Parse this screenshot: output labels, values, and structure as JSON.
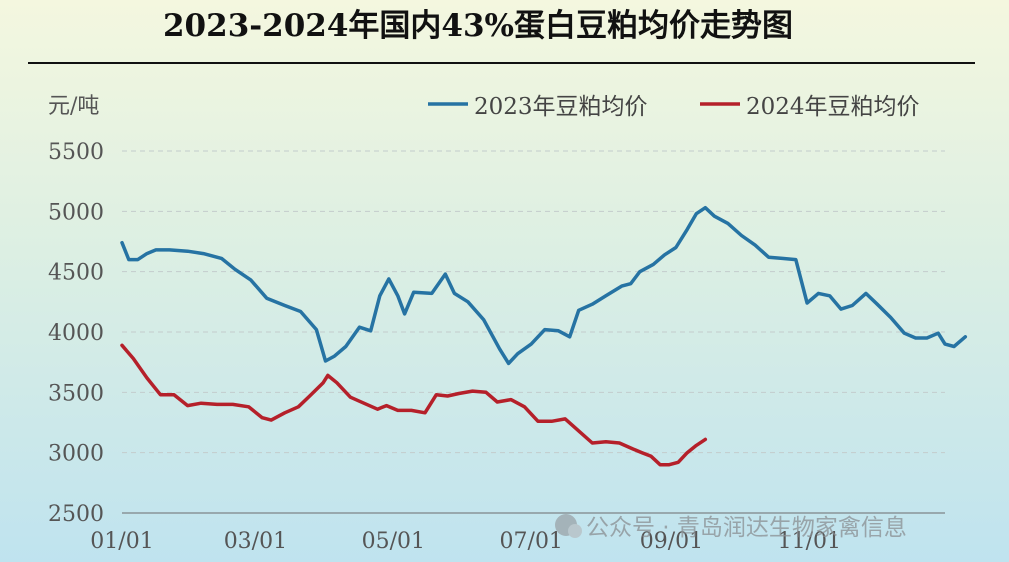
{
  "chart_data": {
    "type": "line",
    "title": "2023-2024年国内43%蛋白豆粕均价走势图",
    "ylabel": "元/吨",
    "xlabel": "",
    "ylim": [
      2500,
      5500
    ],
    "yticks": [
      2500,
      3000,
      3500,
      4000,
      4500,
      5000,
      5500
    ],
    "xlim": [
      "01/01",
      "12/31"
    ],
    "xticks": [
      "01/01",
      "03/01",
      "05/01",
      "07/01",
      "09/01",
      "11/01"
    ],
    "grid": "horizontal-dashed",
    "legend_position": "top-right",
    "series": [
      {
        "name": "2023年豆粕均价",
        "color": "#2673a3",
        "points": [
          [
            "01/01",
            4740
          ],
          [
            "01/04",
            4600
          ],
          [
            "01/08",
            4600
          ],
          [
            "01/12",
            4650
          ],
          [
            "01/16",
            4680
          ],
          [
            "01/22",
            4680
          ],
          [
            "01/30",
            4670
          ],
          [
            "02/06",
            4650
          ],
          [
            "02/14",
            4610
          ],
          [
            "02/20",
            4520
          ],
          [
            "02/27",
            4430
          ],
          [
            "03/06",
            4280
          ],
          [
            "03/14",
            4220
          ],
          [
            "03/21",
            4170
          ],
          [
            "03/28",
            4020
          ],
          [
            "04/01",
            3760
          ],
          [
            "04/05",
            3800
          ],
          [
            "04/10",
            3880
          ],
          [
            "04/16",
            4040
          ],
          [
            "04/21",
            4010
          ],
          [
            "04/25",
            4300
          ],
          [
            "04/29",
            4440
          ],
          [
            "05/03",
            4300
          ],
          [
            "05/06",
            4150
          ],
          [
            "05/10",
            4330
          ],
          [
            "05/18",
            4320
          ],
          [
            "05/24",
            4480
          ],
          [
            "05/28",
            4320
          ],
          [
            "06/03",
            4250
          ],
          [
            "06/10",
            4100
          ],
          [
            "06/17",
            3860
          ],
          [
            "06/21",
            3740
          ],
          [
            "06/25",
            3820
          ],
          [
            "07/01",
            3900
          ],
          [
            "07/07",
            4020
          ],
          [
            "07/13",
            4010
          ],
          [
            "07/18",
            3960
          ],
          [
            "07/22",
            4180
          ],
          [
            "07/28",
            4230
          ],
          [
            "08/03",
            4300
          ],
          [
            "08/10",
            4380
          ],
          [
            "08/14",
            4400
          ],
          [
            "08/18",
            4500
          ],
          [
            "08/24",
            4560
          ],
          [
            "08/29",
            4640
          ],
          [
            "09/03",
            4700
          ],
          [
            "09/08",
            4850
          ],
          [
            "09/12",
            4980
          ],
          [
            "09/16",
            5030
          ],
          [
            "09/20",
            4960
          ],
          [
            "09/26",
            4900
          ],
          [
            "10/02",
            4800
          ],
          [
            "10/08",
            4720
          ],
          [
            "10/14",
            4620
          ],
          [
            "10/20",
            4610
          ],
          [
            "10/26",
            4600
          ],
          [
            "10/31",
            4240
          ],
          [
            "11/05",
            4320
          ],
          [
            "11/10",
            4300
          ],
          [
            "11/15",
            4190
          ],
          [
            "11/20",
            4220
          ],
          [
            "11/26",
            4320
          ],
          [
            "12/01",
            4230
          ],
          [
            "12/07",
            4120
          ],
          [
            "12/13",
            3990
          ],
          [
            "12/18",
            3950
          ],
          [
            "12/23",
            3950
          ],
          [
            "12/28",
            3990
          ],
          [
            "12/31",
            3900
          ],
          [
            "01/04",
            3880
          ],
          [
            "01/09",
            3960
          ]
        ]
      },
      {
        "name": "2024年豆粕均价",
        "color": "#b5202a",
        "points": [
          [
            "01/01",
            3890
          ],
          [
            "01/06",
            3780
          ],
          [
            "01/12",
            3620
          ],
          [
            "01/18",
            3480
          ],
          [
            "01/24",
            3480
          ],
          [
            "01/30",
            3390
          ],
          [
            "02/05",
            3410
          ],
          [
            "02/12",
            3400
          ],
          [
            "02/19",
            3400
          ],
          [
            "02/26",
            3380
          ],
          [
            "03/04",
            3290
          ],
          [
            "03/08",
            3270
          ],
          [
            "03/14",
            3330
          ],
          [
            "03/20",
            3380
          ],
          [
            "03/25",
            3470
          ],
          [
            "03/31",
            3580
          ],
          [
            "04/02",
            3640
          ],
          [
            "04/06",
            3580
          ],
          [
            "04/12",
            3460
          ],
          [
            "04/18",
            3410
          ],
          [
            "04/24",
            3360
          ],
          [
            "04/28",
            3390
          ],
          [
            "05/03",
            3350
          ],
          [
            "05/09",
            3350
          ],
          [
            "05/15",
            3330
          ],
          [
            "05/20",
            3480
          ],
          [
            "05/25",
            3470
          ],
          [
            "05/30",
            3490
          ],
          [
            "06/05",
            3510
          ],
          [
            "06/11",
            3500
          ],
          [
            "06/16",
            3420
          ],
          [
            "06/22",
            3440
          ],
          [
            "06/28",
            3380
          ],
          [
            "07/04",
            3260
          ],
          [
            "07/10",
            3260
          ],
          [
            "07/16",
            3280
          ],
          [
            "07/22",
            3180
          ],
          [
            "07/28",
            3080
          ],
          [
            "08/03",
            3090
          ],
          [
            "08/09",
            3080
          ],
          [
            "08/15",
            3030
          ],
          [
            "08/19",
            3000
          ],
          [
            "08/23",
            2970
          ],
          [
            "08/27",
            2900
          ],
          [
            "08/31",
            2900
          ],
          [
            "09/04",
            2920
          ],
          [
            "09/08",
            3000
          ],
          [
            "09/12",
            3060
          ],
          [
            "09/16",
            3110
          ]
        ]
      }
    ]
  },
  "watermark": {
    "source_text": "公众号 · 青岛润达生物家禽信息"
  }
}
